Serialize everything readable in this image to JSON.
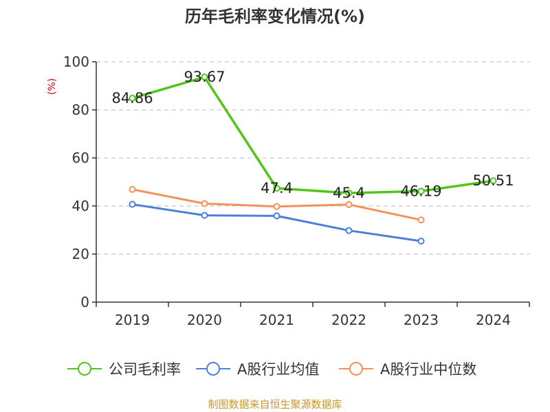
{
  "chart_data": {
    "type": "line",
    "title": "历年毛利率变化情况(%)",
    "unit_label": "(%)",
    "categories": [
      "2019",
      "2020",
      "2021",
      "2022",
      "2023",
      "2024"
    ],
    "ylim": [
      0,
      100
    ],
    "yticks": [
      "0",
      "20",
      "40",
      "60",
      "80",
      "100"
    ],
    "grid": true,
    "legend_position": "bottom",
    "series": [
      {
        "name": "公司毛利率",
        "color": "#52c41a",
        "values": [
          84.86,
          93.67,
          47.4,
          45.4,
          46.19,
          50.51
        ],
        "labels": [
          "84.86",
          "93.67",
          "47.4",
          "45.4",
          "46.19",
          "50.51"
        ]
      },
      {
        "name": "A股行业均值",
        "color": "#4a7fdc",
        "values": [
          40.7,
          36.1,
          35.9,
          29.8,
          25.4,
          null
        ],
        "labels": []
      },
      {
        "name": "A股行业中位数",
        "color": "#f4915a",
        "values": [
          46.9,
          41.0,
          39.8,
          40.6,
          34.2,
          null
        ],
        "labels": []
      }
    ]
  },
  "source": "制图数据来自恒生聚源数据库"
}
